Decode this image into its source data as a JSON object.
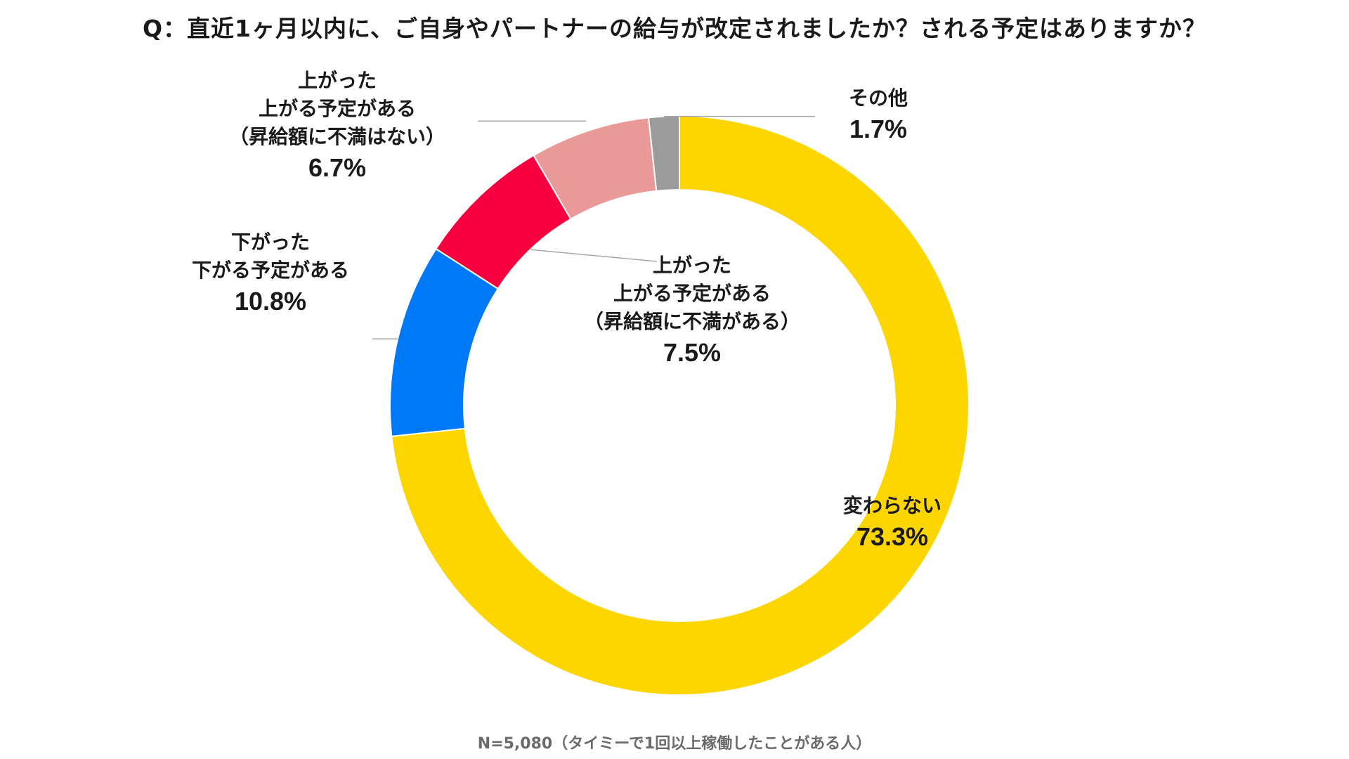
{
  "chart_data": {
    "type": "pie",
    "subtype": "donut",
    "title": "Q：直近1ヶ月以内に、ご自身やパートナーの給与が改定されましたか？される予定はありますか？",
    "unit": "%",
    "slices": [
      {
        "label_lines": [
          "変わらない"
        ],
        "value": 73.3,
        "value_label": "73.3%",
        "color": "#FDD600"
      },
      {
        "label_lines": [
          "下がった",
          "下がる予定がある"
        ],
        "value": 10.8,
        "value_label": "10.8%",
        "color": "#0079F9"
      },
      {
        "label_lines": [
          "上がった",
          "上がる予定がある",
          "（昇給額に不満がある）"
        ],
        "value": 7.5,
        "value_label": "7.5%",
        "color": "#F8003F"
      },
      {
        "label_lines": [
          "上がった",
          "上がる予定がある",
          "（昇給額に不満はない）"
        ],
        "value": 6.7,
        "value_label": "6.7%",
        "color": "#E99A98"
      },
      {
        "label_lines": [
          "その他"
        ],
        "value": 1.7,
        "value_label": "1.7%",
        "color": "#9B9B9B"
      }
    ],
    "start_angle_deg": 0,
    "direction": "clockwise",
    "note": "N=5,080（タイミーで1回以上稼働したことがある人）"
  }
}
